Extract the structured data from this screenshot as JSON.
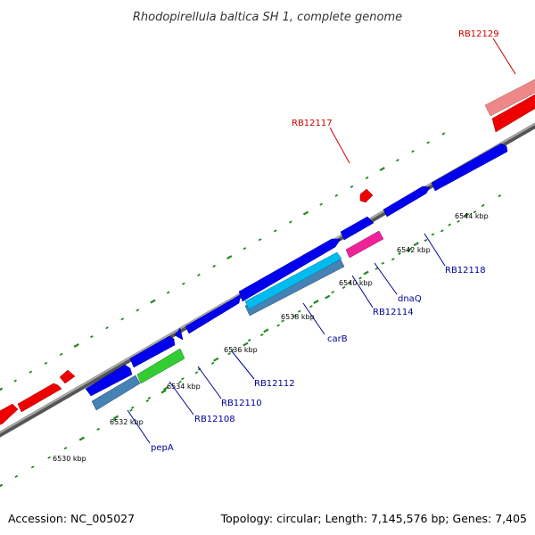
{
  "title": "Rhodopirellula baltica SH 1, complete genome",
  "footer": {
    "accession": "Accession: NC_005027",
    "summary": "Topology: circular; Length: 7,145,576 bp; Genes: 7,405"
  },
  "colors": {
    "backbone": "#888888",
    "tick": "#228822",
    "blue_gene": "#0000ee",
    "red_gene": "#ee0000",
    "light_red_gene": "#ee8888",
    "steel_gene": "#4682b4",
    "cyan_gene": "#00bbee",
    "green_gene": "#33cc33",
    "magenta_gene": "#ee2299",
    "label_blue": "#000099",
    "label_red": "#cc0000"
  },
  "kbp_labels": [
    "6530 kbp",
    "6532 kbp",
    "6534 kbp",
    "6536 kbp",
    "6538 kbp",
    "6540 kbp",
    "6542 kbp",
    "6544 kbp"
  ],
  "gene_labels": {
    "pepA": "pepA",
    "rb12108": "RB12108",
    "rb12110": "RB12110",
    "rb12112": "RB12112",
    "carB": "carB",
    "rb12114": "RB12114",
    "dnaQ": "dnaQ",
    "rb12118": "RB12118",
    "rb12117": "RB12117",
    "rb12129": "RB12129"
  }
}
